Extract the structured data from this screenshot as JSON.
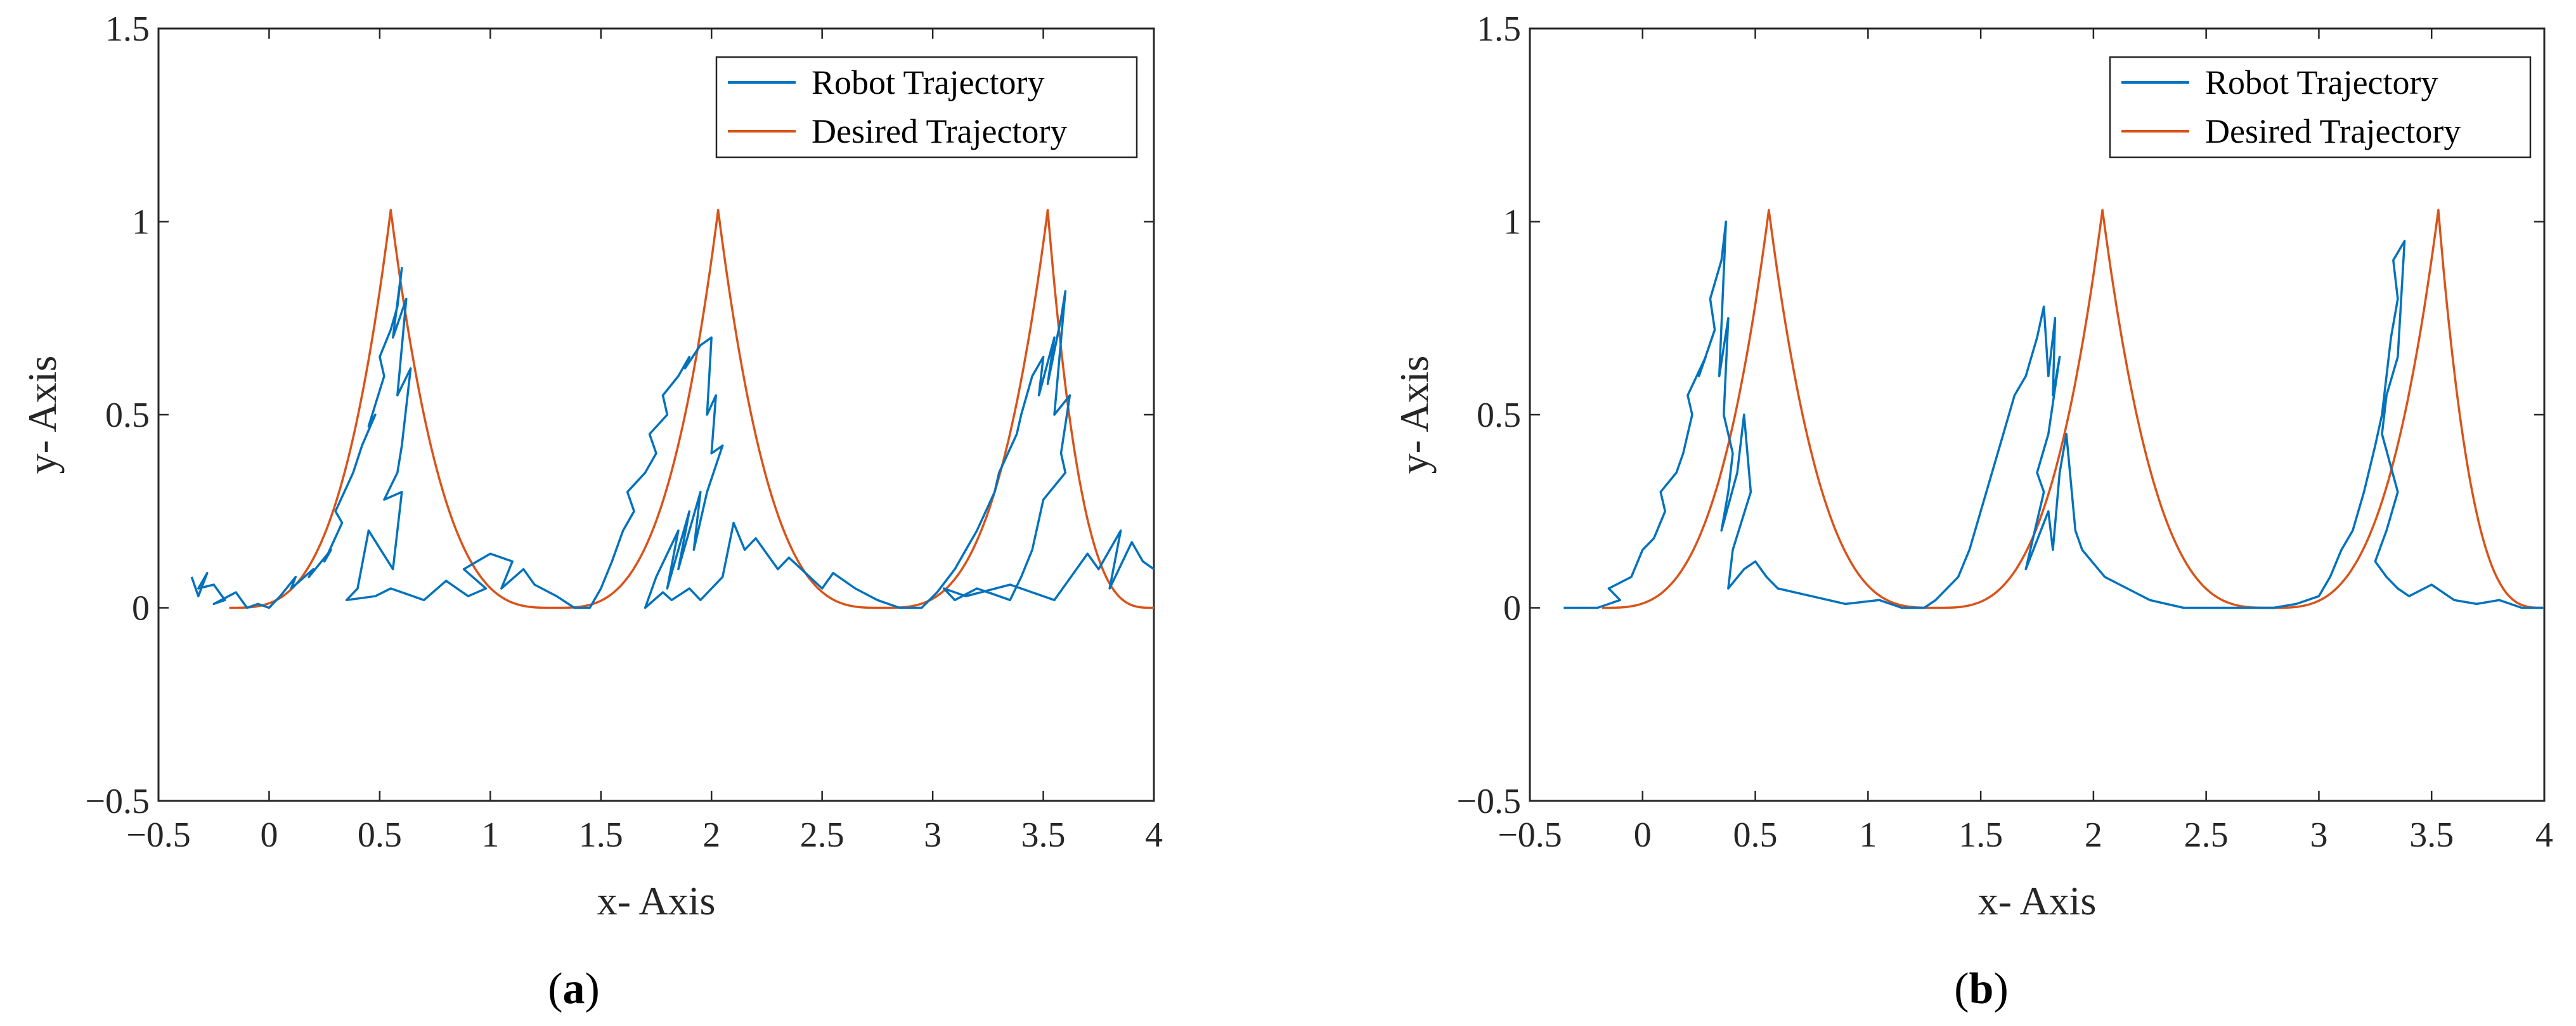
{
  "chart_data": [
    {
      "type": "line",
      "panel": "a",
      "caption_letter": "a",
      "caption_open": "(",
      "caption_close": ")",
      "xlabel": "x- Axis",
      "ylabel": "y- Axis",
      "xlim": [
        -0.5,
        4
      ],
      "ylim": [
        -0.5,
        1.5
      ],
      "xticks": [
        -0.5,
        0,
        0.5,
        1,
        1.5,
        2,
        2.5,
        3,
        3.5,
        4
      ],
      "xtick_labels": [
        "−0.5",
        "0",
        "0.5",
        "1",
        "1.5",
        "2",
        "2.5",
        "3",
        "3.5",
        "4"
      ],
      "yticks": [
        -0.5,
        0,
        0.5,
        1,
        1.5
      ],
      "ytick_labels": [
        "−0.5",
        "0",
        "0.5",
        "1",
        "1.5"
      ],
      "legend_position": "top-right",
      "series": [
        {
          "name": "Robot Trajectory",
          "color": "#0072BD",
          "x": [
            -0.35,
            -0.32,
            -0.28,
            -0.32,
            -0.25,
            -0.2,
            -0.25,
            -0.15,
            -0.1,
            -0.05,
            0.0,
            0.05,
            0.12,
            0.1,
            0.2,
            0.18,
            0.28,
            0.25,
            0.33,
            0.3,
            0.38,
            0.42,
            0.48,
            0.45,
            0.52,
            0.5,
            0.55,
            0.58,
            0.6,
            0.56,
            0.62,
            0.58,
            0.64,
            0.6,
            0.58,
            0.52,
            0.6,
            0.56,
            0.45,
            0.4,
            0.35,
            0.48,
            0.55,
            0.7,
            0.8,
            0.9,
            0.98,
            0.88,
            1.0,
            1.1,
            1.05,
            1.15,
            1.2,
            1.3,
            1.38,
            1.45,
            1.5,
            1.55,
            1.6,
            1.65,
            1.62,
            1.7,
            1.75,
            1.72,
            1.8,
            1.78,
            1.85,
            1.9,
            1.88,
            1.95,
            2.0,
            1.98,
            2.02,
            2.0,
            2.05,
            1.98,
            1.92,
            1.95,
            1.85,
            1.9,
            1.8,
            1.85,
            1.75,
            1.7,
            1.78,
            1.82,
            1.9,
            1.95,
            2.05,
            2.1,
            2.15,
            2.2,
            2.3,
            2.35,
            2.5,
            2.55,
            2.65,
            2.75,
            2.85,
            2.95,
            3.02,
            3.1,
            3.15,
            3.2,
            3.28,
            3.3,
            3.38,
            3.4,
            3.45,
            3.5,
            3.48,
            3.55,
            3.52,
            3.58,
            3.6,
            3.55,
            3.62,
            3.58,
            3.6,
            3.5,
            3.45,
            3.4,
            3.35,
            3.3,
            3.2,
            3.1,
            3.05,
            3.15,
            3.35,
            3.55,
            3.6,
            3.7,
            3.75,
            3.85,
            3.8,
            3.9,
            3.95,
            4.0
          ],
          "y": [
            0.08,
            0.03,
            0.09,
            0.05,
            0.06,
            0.02,
            0.01,
            0.04,
            0.0,
            0.01,
            0.0,
            0.03,
            0.08,
            0.05,
            0.1,
            0.08,
            0.15,
            0.12,
            0.22,
            0.25,
            0.35,
            0.42,
            0.5,
            0.47,
            0.6,
            0.65,
            0.72,
            0.78,
            0.88,
            0.7,
            0.8,
            0.55,
            0.62,
            0.42,
            0.35,
            0.28,
            0.3,
            0.1,
            0.2,
            0.05,
            0.02,
            0.03,
            0.05,
            0.02,
            0.07,
            0.03,
            0.05,
            0.1,
            0.14,
            0.12,
            0.05,
            0.1,
            0.06,
            0.03,
            0.0,
            0.0,
            0.05,
            0.12,
            0.2,
            0.25,
            0.3,
            0.35,
            0.4,
            0.45,
            0.5,
            0.55,
            0.6,
            0.65,
            0.62,
            0.68,
            0.7,
            0.5,
            0.55,
            0.4,
            0.42,
            0.3,
            0.15,
            0.3,
            0.1,
            0.25,
            0.05,
            0.2,
            0.08,
            0.0,
            0.04,
            0.02,
            0.05,
            0.02,
            0.08,
            0.22,
            0.15,
            0.18,
            0.1,
            0.13,
            0.05,
            0.09,
            0.05,
            0.02,
            0.0,
            0.0,
            0.04,
            0.1,
            0.15,
            0.2,
            0.3,
            0.35,
            0.45,
            0.5,
            0.6,
            0.65,
            0.55,
            0.7,
            0.58,
            0.75,
            0.82,
            0.5,
            0.55,
            0.4,
            0.35,
            0.28,
            0.15,
            0.08,
            0.02,
            0.03,
            0.05,
            0.02,
            0.05,
            0.03,
            0.06,
            0.02,
            0.06,
            0.14,
            0.1,
            0.2,
            0.05,
            0.17,
            0.12,
            0.1
          ]
        },
        {
          "name": "Desired Trajectory",
          "color": "#D95319",
          "cusp_x": [
            0.55,
            2.03,
            3.52
          ],
          "base_x": [
            -0.18,
            1.29,
            2.77,
            4.0
          ],
          "peak_y": 1.03
        }
      ]
    },
    {
      "type": "line",
      "panel": "b",
      "caption_letter": "b",
      "caption_open": "(",
      "caption_close": ")",
      "xlabel": "x- Axis",
      "ylabel": "y- Axis",
      "xlim": [
        -0.5,
        4
      ],
      "ylim": [
        -0.5,
        1.5
      ],
      "xticks": [
        -0.5,
        0,
        0.5,
        1,
        1.5,
        2,
        2.5,
        3,
        3.5,
        4
      ],
      "xtick_labels": [
        "−0.5",
        "0",
        "0.5",
        "1",
        "1.5",
        "2",
        "2.5",
        "3",
        "3.5",
        "4"
      ],
      "yticks": [
        -0.5,
        0,
        0.5,
        1,
        1.5
      ],
      "ytick_labels": [
        "−0.5",
        "0",
        "0.5",
        "1",
        "1.5"
      ],
      "legend_position": "top-right",
      "series": [
        {
          "name": "Robot Trajectory",
          "color": "#0072BD",
          "x": [
            -0.35,
            -0.2,
            -0.1,
            -0.15,
            -0.05,
            0.0,
            0.05,
            0.1,
            0.08,
            0.15,
            0.18,
            0.22,
            0.2,
            0.28,
            0.25,
            0.32,
            0.3,
            0.35,
            0.37,
            0.34,
            0.38,
            0.36,
            0.4,
            0.38,
            0.35,
            0.42,
            0.45,
            0.48,
            0.4,
            0.38,
            0.45,
            0.5,
            0.55,
            0.6,
            0.75,
            0.9,
            1.05,
            1.15,
            1.25,
            1.3,
            1.4,
            1.45,
            1.5,
            1.55,
            1.6,
            1.65,
            1.7,
            1.75,
            1.78,
            1.8,
            1.83,
            1.82,
            1.85,
            1.8,
            1.75,
            1.78,
            1.7,
            1.8,
            1.82,
            1.85,
            1.88,
            1.92,
            1.95,
            2.05,
            2.15,
            2.25,
            2.4,
            2.55,
            2.65,
            2.8,
            2.9,
            3.0,
            3.05,
            3.1,
            3.15,
            3.2,
            3.25,
            3.28,
            3.3,
            3.32,
            3.35,
            3.33,
            3.38,
            3.35,
            3.3,
            3.28,
            3.35,
            3.3,
            3.25,
            3.3,
            3.35,
            3.4,
            3.5,
            3.6,
            3.7,
            3.8,
            3.9,
            4.0
          ],
          "y": [
            0.0,
            0.0,
            0.02,
            0.05,
            0.08,
            0.15,
            0.18,
            0.25,
            0.3,
            0.35,
            0.4,
            0.5,
            0.55,
            0.65,
            0.6,
            0.72,
            0.8,
            0.9,
            1.0,
            0.6,
            0.75,
            0.5,
            0.4,
            0.3,
            0.2,
            0.35,
            0.5,
            0.3,
            0.15,
            0.05,
            0.1,
            0.12,
            0.08,
            0.05,
            0.03,
            0.01,
            0.02,
            0.0,
            0.0,
            0.02,
            0.08,
            0.15,
            0.25,
            0.35,
            0.45,
            0.55,
            0.6,
            0.7,
            0.78,
            0.6,
            0.75,
            0.55,
            0.65,
            0.45,
            0.35,
            0.3,
            0.1,
            0.25,
            0.15,
            0.35,
            0.45,
            0.2,
            0.15,
            0.08,
            0.05,
            0.02,
            0.0,
            0.0,
            0.0,
            0.0,
            0.01,
            0.03,
            0.08,
            0.15,
            0.2,
            0.3,
            0.42,
            0.5,
            0.6,
            0.7,
            0.8,
            0.9,
            0.95,
            0.65,
            0.55,
            0.45,
            0.3,
            0.2,
            0.12,
            0.08,
            0.05,
            0.03,
            0.06,
            0.02,
            0.01,
            0.02,
            0.0,
            0.0
          ]
        },
        {
          "name": "Desired Trajectory",
          "color": "#D95319",
          "cusp_x": [
            0.56,
            2.04,
            3.53
          ],
          "base_x": [
            -0.18,
            1.3,
            2.79,
            4.0
          ],
          "peak_y": 1.03
        }
      ]
    }
  ]
}
